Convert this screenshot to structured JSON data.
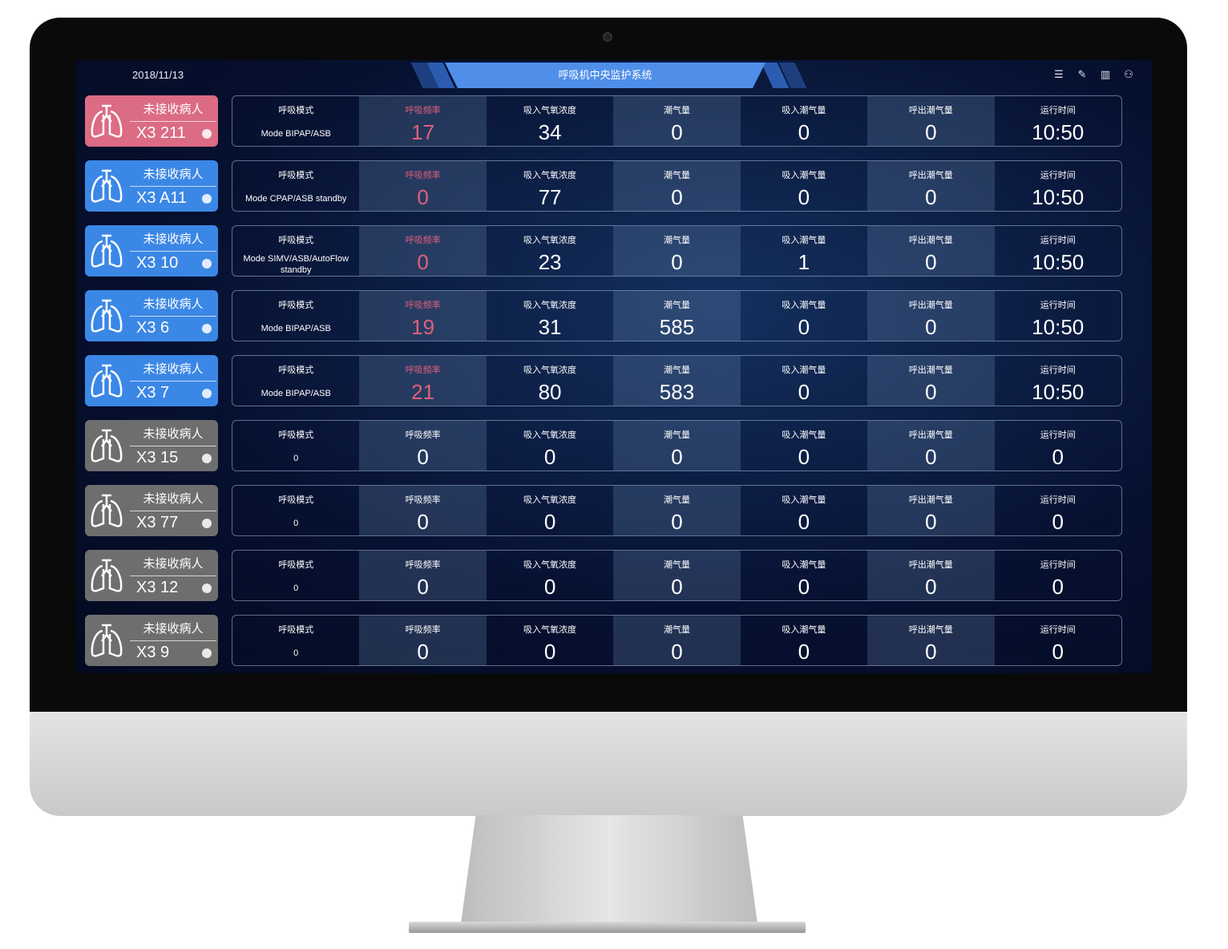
{
  "header": {
    "date": "2018/11/13",
    "title": "呼吸机中央监护系统",
    "icons": [
      "list-icon",
      "edit-icon",
      "layout-icon",
      "user-icon"
    ]
  },
  "colors": {
    "pink": "#dc6b84",
    "blue": "#3b87e6",
    "gray": "#6e6e6e",
    "alert": "#e0607a"
  },
  "labels": [
    "呼吸模式",
    "呼吸频率",
    "吸入气氧浓度",
    "潮气量",
    "吸入潮气量",
    "呼出潮气量",
    "运行时间"
  ],
  "rows": [
    {
      "status": "未接收病人",
      "bed": "X3 211",
      "color": "pink",
      "alert": true,
      "mode": "Mode BIPAP/ASB",
      "values": [
        "17",
        "34",
        "0",
        "0",
        "0",
        "10:50"
      ]
    },
    {
      "status": "未接收病人",
      "bed": "X3 A11",
      "color": "blue",
      "alert": true,
      "mode": "Mode CPAP/ASB standby",
      "values": [
        "0",
        "77",
        "0",
        "0",
        "0",
        "10:50"
      ]
    },
    {
      "status": "未接收病人",
      "bed": "X3 10",
      "color": "blue",
      "alert": true,
      "mode": "Mode SIMV/ASB/AutoFlow standby",
      "values": [
        "0",
        "23",
        "0",
        "1",
        "0",
        "10:50"
      ]
    },
    {
      "status": "未接收病人",
      "bed": "X3 6",
      "color": "blue",
      "alert": true,
      "mode": "Mode BIPAP/ASB",
      "values": [
        "19",
        "31",
        "585",
        "0",
        "0",
        "10:50"
      ]
    },
    {
      "status": "未接收病人",
      "bed": "X3 7",
      "color": "blue",
      "alert": true,
      "mode": "Mode BIPAP/ASB",
      "values": [
        "21",
        "80",
        "583",
        "0",
        "0",
        "10:50"
      ]
    },
    {
      "status": "未接收病人",
      "bed": "X3 15",
      "color": "gray",
      "alert": false,
      "mode": "0",
      "values": [
        "0",
        "0",
        "0",
        "0",
        "0",
        "0"
      ]
    },
    {
      "status": "未接收病人",
      "bed": "X3 77",
      "color": "gray",
      "alert": false,
      "mode": "0",
      "values": [
        "0",
        "0",
        "0",
        "0",
        "0",
        "0"
      ]
    },
    {
      "status": "未接收病人",
      "bed": "X3 12",
      "color": "gray",
      "alert": false,
      "mode": "0",
      "values": [
        "0",
        "0",
        "0",
        "0",
        "0",
        "0"
      ]
    },
    {
      "status": "未接收病人",
      "bed": "X3 9",
      "color": "gray",
      "alert": false,
      "mode": "0",
      "values": [
        "0",
        "0",
        "0",
        "0",
        "0",
        "0"
      ]
    }
  ]
}
